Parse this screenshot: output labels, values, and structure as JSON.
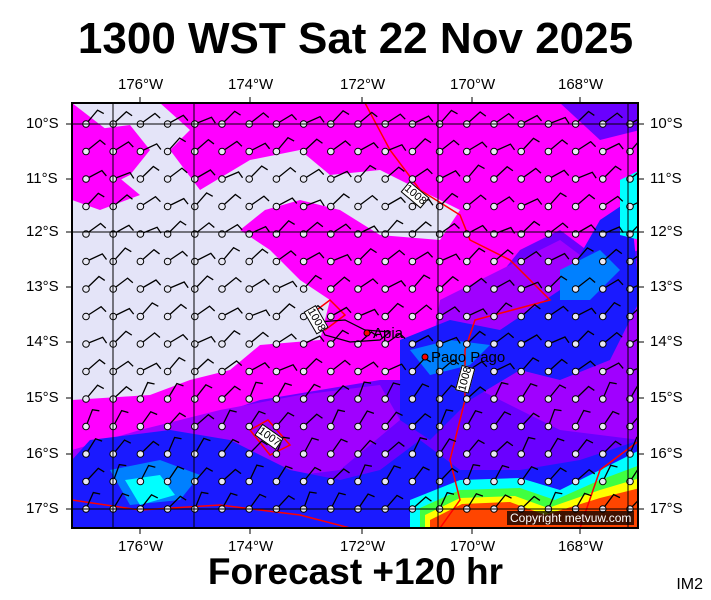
{
  "title": "1300 WST Sat 22 Nov 2025",
  "footer": "Forecast +120 hr",
  "chart_code": "IM2",
  "copyright": "Copyright metvuw.com",
  "map": {
    "lon_labels": [
      "176°W",
      "174°W",
      "172°W",
      "170°W",
      "168°W"
    ],
    "lat_labels": [
      "10°S",
      "11°S",
      "12°S",
      "13°S",
      "14°S",
      "15°S",
      "16°S",
      "17°S"
    ],
    "places": [
      "Apia",
      "Pago Pago"
    ],
    "isobar_labels": [
      "1008",
      "1008",
      "1008",
      "1007"
    ],
    "colors": {
      "lavender": "#e4e4f8",
      "magenta": "#ff00ff",
      "violet": "#a000ff",
      "purple": "#6a00ff",
      "blue": "#1a1aff",
      "lightblue": "#0080ff",
      "cyan": "#00ffff",
      "green": "#40ff40",
      "yellow": "#ffff00",
      "orange": "#ff4500",
      "isobar": "#ff0000"
    }
  }
}
